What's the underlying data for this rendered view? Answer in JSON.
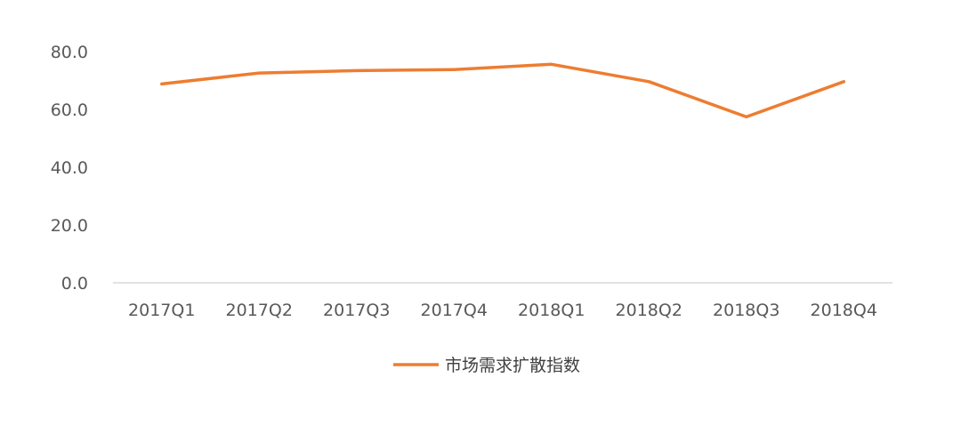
{
  "chart_data": {
    "type": "line",
    "categories": [
      "2017Q1",
      "2017Q2",
      "2017Q3",
      "2017Q4",
      "2018Q1",
      "2018Q2",
      "2018Q3",
      "2018Q4"
    ],
    "series": [
      {
        "name": "市场需求扩散指数",
        "values": [
          68.8,
          72.6,
          73.4,
          73.8,
          75.6,
          69.6,
          57.4,
          69.6
        ],
        "color": "#ed7d31"
      }
    ],
    "ylim": [
      0,
      80
    ],
    "yticks": [
      "0.0",
      "20.0",
      "40.0",
      "60.0",
      "80.0"
    ],
    "ytick_values": [
      0,
      20,
      40,
      60,
      80
    ],
    "grid": false,
    "legend": "bottom-center",
    "axis_color": "#d9d9d9"
  }
}
